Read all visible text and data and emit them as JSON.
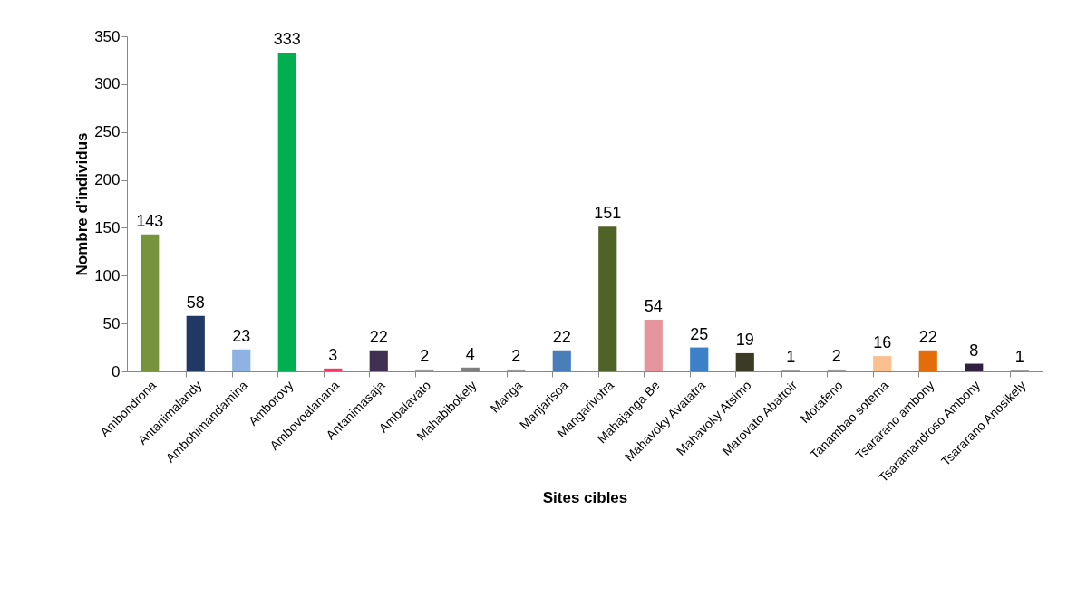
{
  "chart_data": {
    "type": "bar",
    "xlabel": "Sites cibles",
    "ylabel": "Nombre d'individus",
    "categories": [
      "Ambondrona",
      "Antanimalandy",
      "Ambohimandamina",
      "Amborovy",
      "Ambovoalanana",
      "Antanimasaja",
      "Ambalavato",
      "Mahabibokely",
      "Manga",
      "Manjarisoa",
      "Mangarivotra",
      "Mahajanga Be",
      "Mahavoky Avatatra",
      "Mahavoky Atsimo",
      "Marovato Abattoir",
      "Morafeno",
      "Tanambao sotema",
      "Tsararano ambony",
      "Tsaramandroso Ambony",
      "Tsararano Anosikely"
    ],
    "values": [
      143,
      58,
      23,
      333,
      3,
      22,
      2,
      4,
      2,
      22,
      151,
      54,
      25,
      19,
      1,
      2,
      16,
      22,
      8,
      1
    ],
    "colors": [
      "#77933c",
      "#1f3864",
      "#8db3e2",
      "#00b050",
      "#ff3366",
      "#403152",
      "#a0a0a0",
      "#7f7f7f",
      "#a0a0a0",
      "#4a7ebb",
      "#4f6228",
      "#e6959c",
      "#3c80c8",
      "#3b3a24",
      "#a0a0a0",
      "#a0a0a0",
      "#fac090",
      "#e46c0a",
      "#302040",
      "#a0a0a0"
    ],
    "ylim": [
      0,
      350
    ],
    "yticks": [
      0,
      50,
      100,
      150,
      200,
      250,
      300,
      350
    ],
    "data_labels": true,
    "grid": false
  }
}
